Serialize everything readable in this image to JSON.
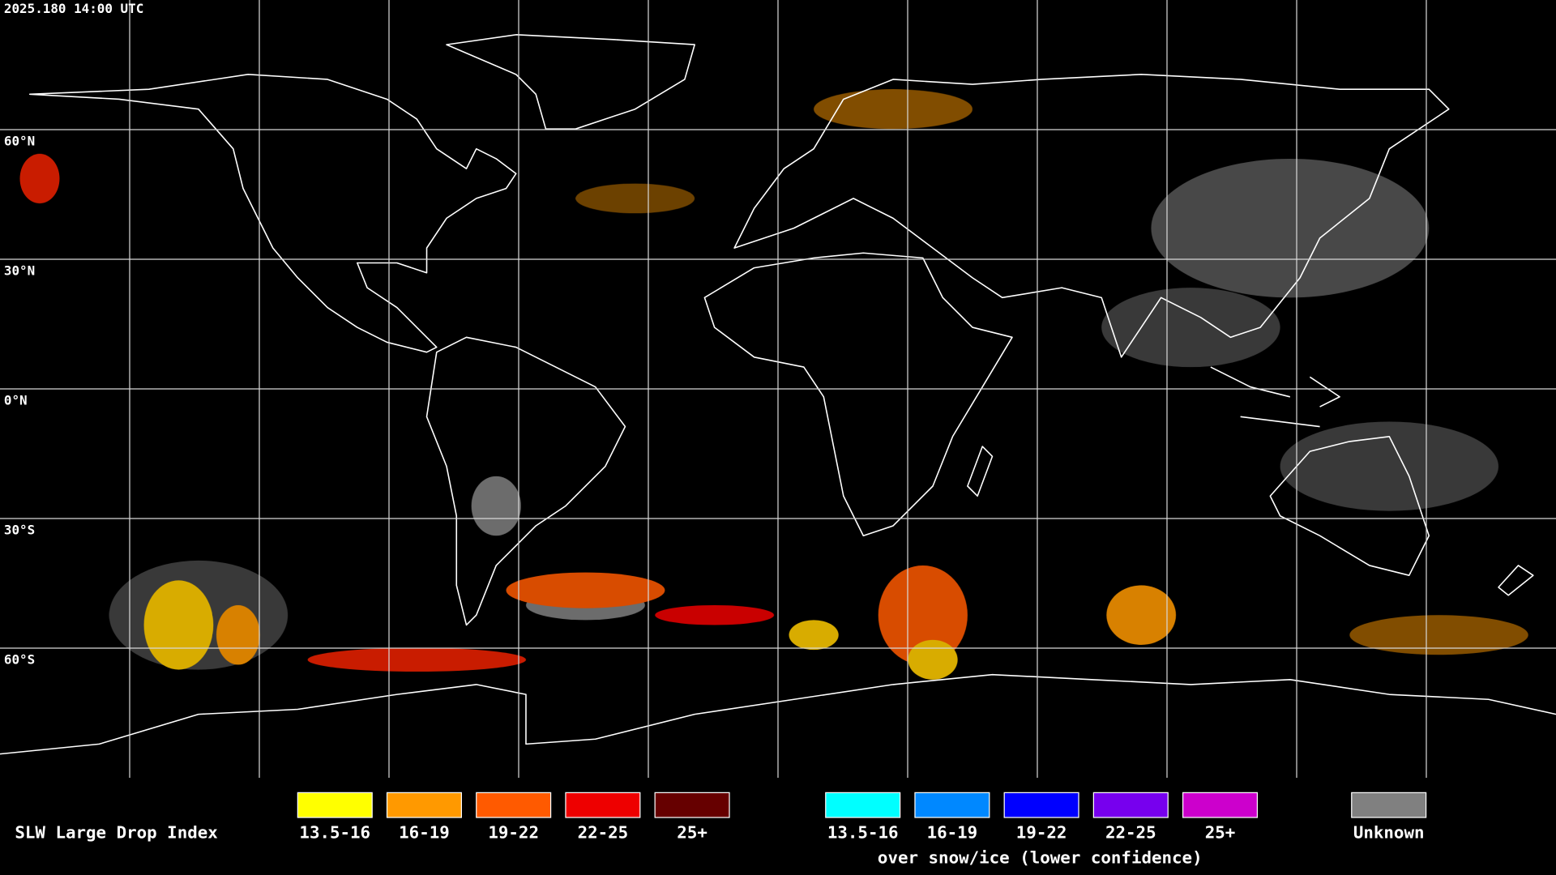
{
  "header": {
    "timestamp": "2025.180 14:00 UTC"
  },
  "latitude_labels": [
    "60°N",
    "30°N",
    "0°N",
    "30°S",
    "60°S"
  ],
  "legend": {
    "title": "SLW Large Drop Index",
    "liquid": [
      {
        "label": "13.5-16",
        "color": "#ffff00"
      },
      {
        "label": "16-19",
        "color": "#ff9900"
      },
      {
        "label": "19-22",
        "color": "#ff5a00"
      },
      {
        "label": "22-25",
        "color": "#ee0000"
      },
      {
        "label": "25+",
        "color": "#660000"
      }
    ],
    "snow_ice": [
      {
        "label": "13.5-16",
        "color": "#00ffff"
      },
      {
        "label": "16-19",
        "color": "#0088ff"
      },
      {
        "label": "19-22",
        "color": "#0000ff"
      },
      {
        "label": "22-25",
        "color": "#7700ee"
      },
      {
        "label": "25+",
        "color": "#cc00cc"
      }
    ],
    "snow_ice_note": "over snow/ice (lower confidence)",
    "unknown": {
      "label": "Unknown",
      "color": "#808080"
    }
  }
}
